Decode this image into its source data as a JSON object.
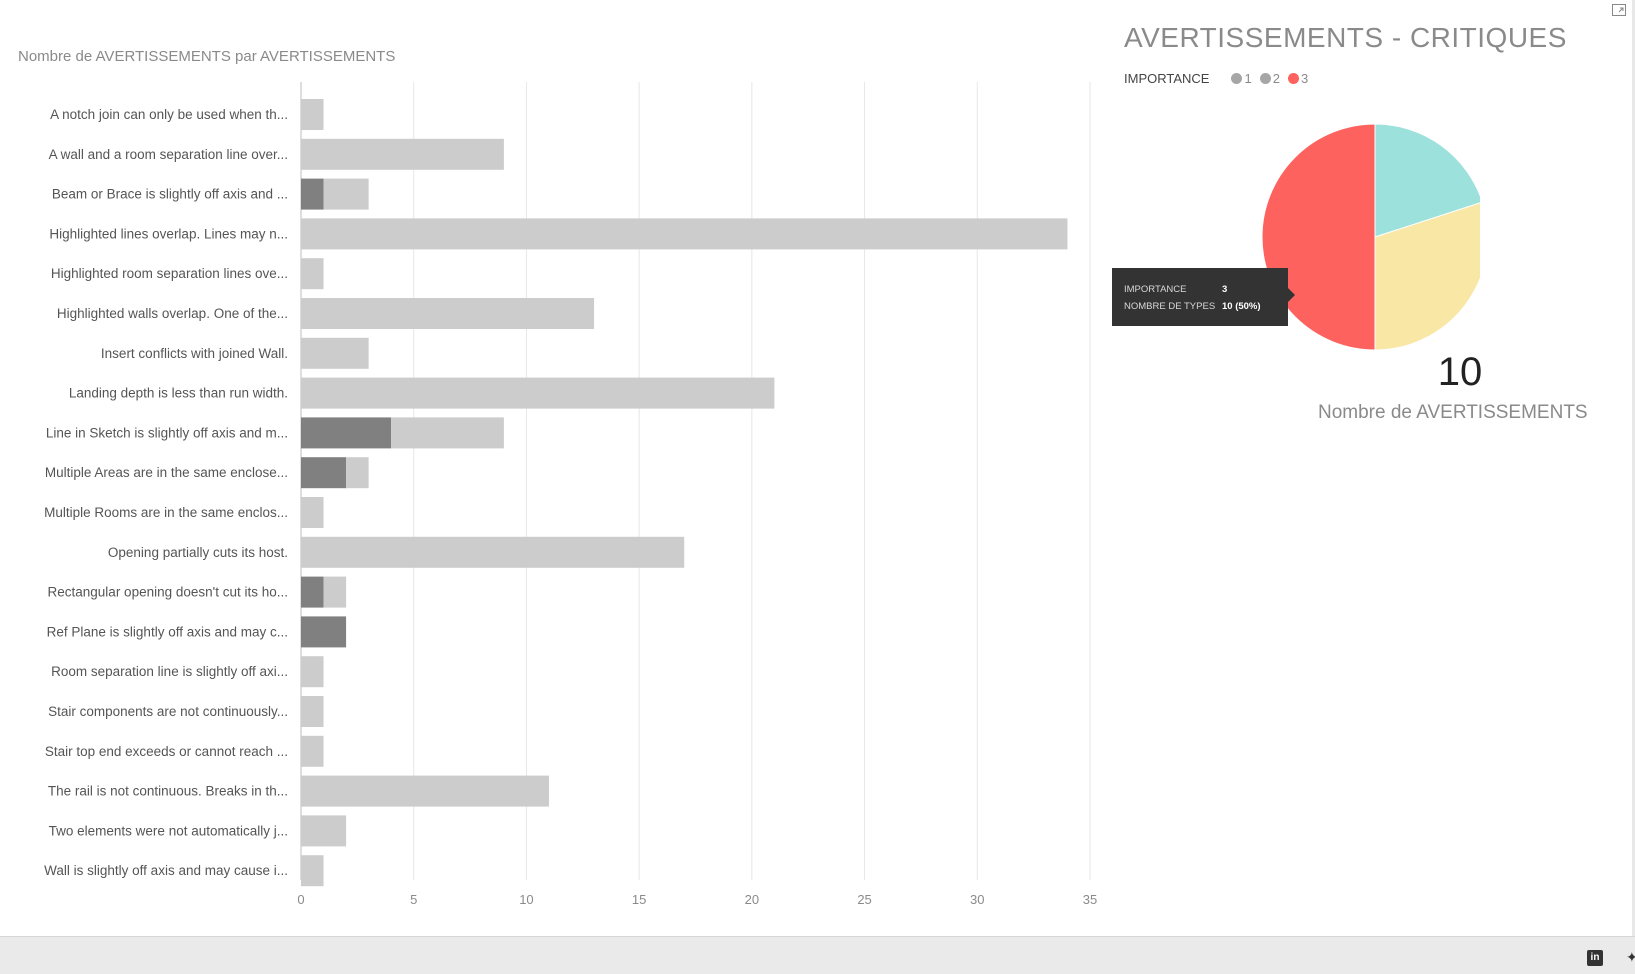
{
  "bar_chart": {
    "title": "Nombre de AVERTISSEMENTS par AVERTISSEMENTS"
  },
  "pie_chart": {
    "title": "AVERTISSEMENTS - CRITIQUES",
    "legend_label": "IMPORTANCE"
  },
  "tooltip": {
    "rows": [
      {
        "key": "IMPORTANCE",
        "value": "3"
      },
      {
        "key": "NOMBRE DE TYPES",
        "value": "10 (50%)"
      }
    ]
  },
  "card": {
    "value": "10",
    "label": "Nombre de AVERTISSEMENTS"
  },
  "colors": {
    "bar_light": "#cccccc",
    "bar_dark": "#808080",
    "pie_red": "#fd625e",
    "pie_teal": "#9ce1db",
    "pie_yellow": "#f8e7a5",
    "legend_grey": "#a6a6a6",
    "grid": "#e6e6e6"
  },
  "footer_icons": [
    "linkedin-icon",
    "twitter-icon"
  ],
  "chart_data": [
    {
      "type": "bar",
      "orientation": "horizontal",
      "stacked": true,
      "title": "Nombre de AVERTISSEMENTS par AVERTISSEMENTS",
      "categories": [
        "A notch join can only be used when th...",
        "A wall and a room separation line over...",
        "Beam or Brace is slightly off axis and ...",
        "Highlighted lines overlap. Lines may n...",
        "Highlighted room separation lines ove...",
        "Highlighted walls overlap. One of the...",
        "Insert conflicts with joined Wall.",
        "Landing depth is less than run width.",
        "Line in Sketch is slightly off axis and m...",
        "Multiple Areas are in the same enclose...",
        "Multiple Rooms are in the same enclos...",
        "Opening partially cuts its host.",
        "Rectangular opening doesn't cut its ho...",
        "Ref Plane is slightly off axis and may c...",
        "Room separation line is slightly off axi...",
        "Stair components are not continuously...",
        "Stair top end exceeds or cannot reach ...",
        "The rail is not continuous. Breaks in th...",
        "Two elements were not automatically j...",
        "Wall is slightly off axis and may cause i..."
      ],
      "series": [
        {
          "values": [
            0,
            0,
            1,
            0,
            0,
            0,
            0,
            0,
            4,
            2,
            0,
            0,
            1,
            2,
            0,
            0,
            0,
            0,
            0,
            0
          ]
        },
        {
          "values": [
            1,
            9,
            2,
            34,
            1,
            13,
            3,
            21,
            5,
            1,
            1,
            17,
            1,
            0,
            1,
            1,
            1,
            11,
            2,
            1
          ]
        }
      ],
      "xlim": [
        0,
        35
      ],
      "x_ticks": [
        0,
        5,
        10,
        15,
        20,
        25,
        30,
        35
      ],
      "grid": true
    },
    {
      "type": "pie",
      "title": "AVERTISSEMENTS - CRITIQUES",
      "legend_title": "IMPORTANCE",
      "legend_position": "top-left",
      "slices": [
        {
          "label": "1",
          "value": 4,
          "legend_color": "#a6a6a6",
          "color": "#9ce1db"
        },
        {
          "label": "2",
          "value": 6,
          "legend_color": "#a6a6a6",
          "color": "#f8e7a5"
        },
        {
          "label": "3",
          "value": 10,
          "legend_color": "#fd625e",
          "color": "#fd625e"
        }
      ]
    }
  ]
}
